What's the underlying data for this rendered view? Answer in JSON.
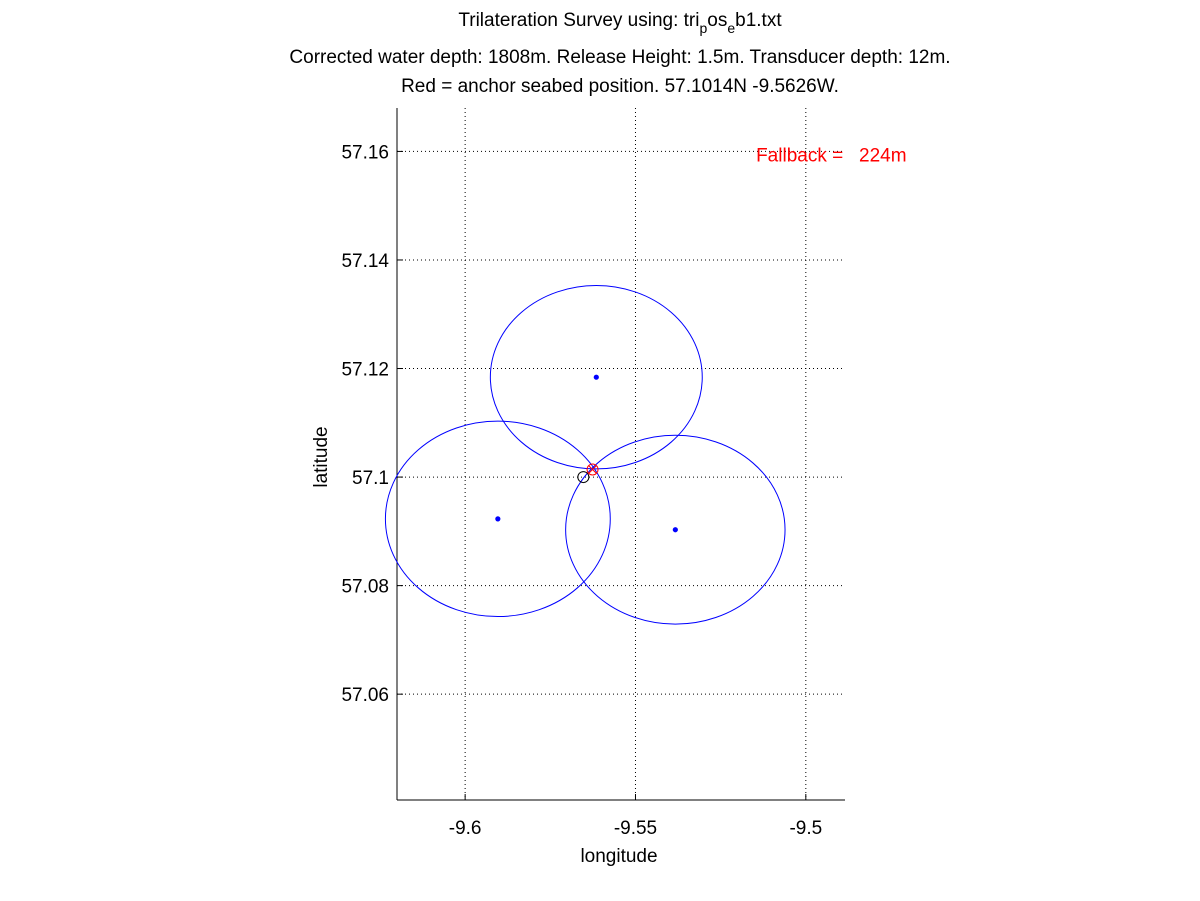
{
  "chart_data": {
    "type": "scatter",
    "title": {
      "line1_parts": [
        "Trilateration Survey using: tri",
        "p",
        "os",
        "e",
        "b1.txt"
      ],
      "line2": "Corrected water depth: 1808m. Release Height: 1.5m. Transducer depth: 12m.",
      "line3": "Red = anchor seabed position. 57.1014N -9.5626W."
    },
    "xlabel": "longitude",
    "ylabel": "latitude",
    "xlim": [
      -9.62,
      -9.4885
    ],
    "ylim": [
      57.0405,
      57.168
    ],
    "xticks": [
      -9.6,
      -9.55,
      -9.5
    ],
    "xtick_labels": [
      "-9.6",
      "-9.55",
      "-9.5"
    ],
    "yticks": [
      57.06,
      57.08,
      57.1,
      57.12,
      57.14,
      57.16
    ],
    "ytick_labels": [
      "57.06",
      "57.08",
      "57.1",
      "57.12",
      "57.14",
      "57.16"
    ],
    "grid": true,
    "annotation": {
      "text": "Fallback =   224m",
      "x": -9.5146,
      "y": 57.1594,
      "color": "#ff0000"
    },
    "survey_points": [
      {
        "lon": -9.5615,
        "lat": 57.1184,
        "radius_deg_lon": 0.0311,
        "radius_deg_lat": 0.0169
      },
      {
        "lon": -9.5904,
        "lat": 57.0923,
        "radius_deg_lon": 0.033,
        "radius_deg_lat": 0.018
      },
      {
        "lon": -9.5383,
        "lat": 57.0903,
        "radius_deg_lon": 0.0322,
        "radius_deg_lat": 0.0174
      }
    ],
    "anchor_position": {
      "lon": -9.5626,
      "lat": 57.1014
    },
    "release_position": {
      "lon": -9.5653,
      "lat": 57.1
    },
    "colors": {
      "circles": "#0000ff",
      "points": "#0000ff",
      "anchor": "#ff0000",
      "release": "#000000",
      "axes": "#000000",
      "grid": "#000000"
    }
  }
}
